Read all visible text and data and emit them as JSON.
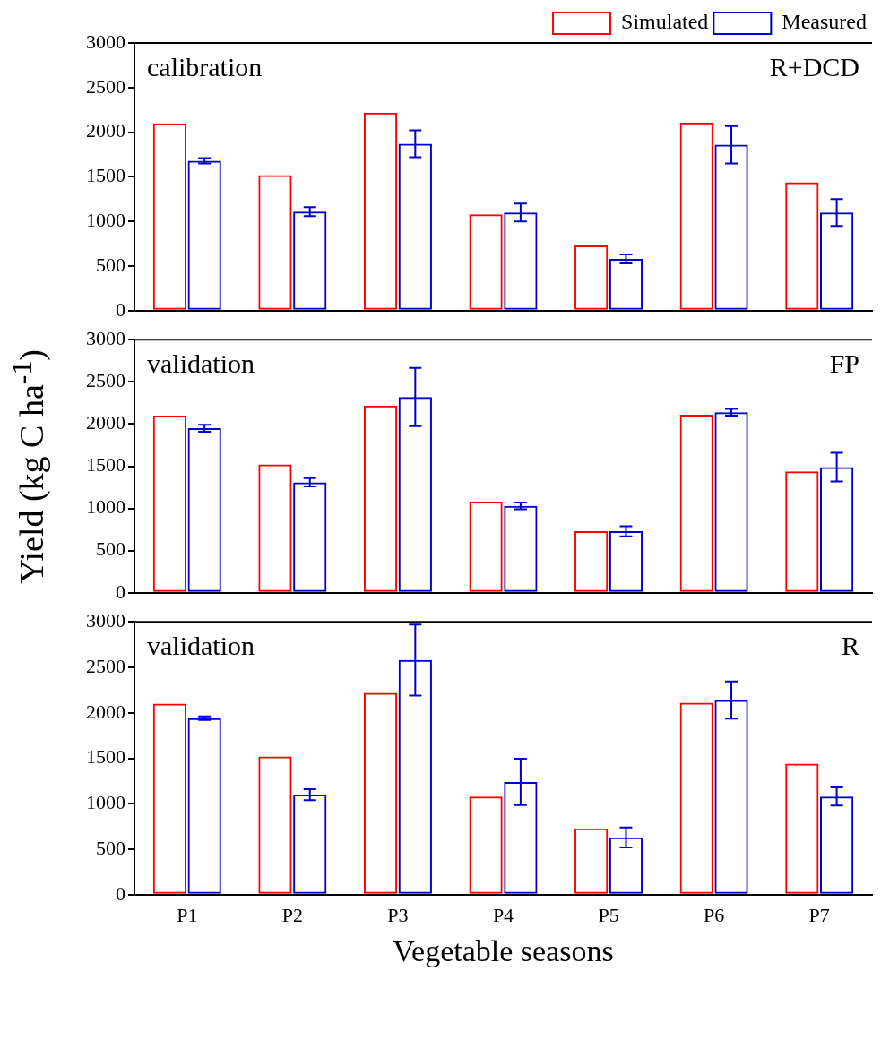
{
  "chart_data": [
    {
      "type": "bar",
      "categories": [
        null,
        null,
        null,
        null,
        null,
        null,
        null
      ],
      "annotations": [
        "calibration",
        "R+DCD"
      ],
      "legend": "top right",
      "grid": false,
      "tick_labels": "y",
      "ylim": [
        0,
        3000
      ],
      "yticks": [
        0,
        500,
        1000,
        1500,
        2000,
        2500,
        3000
      ],
      "series": [
        {
          "name": "Simulated",
          "color": "#ff0000",
          "values": [
            2100,
            1520,
            2220,
            1080,
            730,
            2110,
            1440
          ]
        },
        {
          "name": "Measured",
          "color": "#0000cc",
          "values": [
            1680,
            1110,
            1870,
            1100,
            580,
            1860,
            1100
          ],
          "errors": [
            30,
            50,
            150,
            100,
            50,
            210,
            150
          ]
        }
      ]
    },
    {
      "type": "bar",
      "categories": [
        null,
        null,
        null,
        null,
        null,
        null,
        null
      ],
      "annotations": [
        "validation",
        "FP"
      ],
      "ylabel": "Yield (kg C ha$^{-1}$)",
      "grid": false,
      "tick_labels": "y",
      "ylim": [
        0,
        3000
      ],
      "yticks": [
        0,
        500,
        1000,
        1500,
        2000,
        2500,
        3000
      ],
      "series": [
        {
          "color": "#ff0000",
          "values": [
            2100,
            1520,
            2220,
            1080,
            730,
            2110,
            1440
          ]
        },
        {
          "color": "#0000cc",
          "values": [
            1950,
            1310,
            2320,
            1030,
            730,
            2140,
            1490
          ],
          "errors": [
            40,
            50,
            345,
            40,
            60,
            40,
            170
          ]
        }
      ]
    },
    {
      "type": "bar",
      "categories": [
        "P1",
        "P2",
        "P3",
        "P4",
        "P5",
        "P6",
        "P7"
      ],
      "annotations": [
        "validation",
        "R"
      ],
      "xlabel": "Vegetable seasons",
      "grid": false,
      "ylim": [
        0,
        3000
      ],
      "yticks": [
        0,
        500,
        1000,
        1500,
        2000,
        2500,
        3000
      ],
      "series": [
        {
          "color": "#ff0000",
          "values": [
            2100,
            1520,
            2220,
            1080,
            730,
            2110,
            1440
          ]
        },
        {
          "color": "#0000cc",
          "values": [
            1940,
            1100,
            2580,
            1240,
            630,
            2140,
            1080
          ],
          "errors": [
            20,
            60,
            390,
            255,
            110,
            205,
            100
          ]
        }
      ]
    }
  ]
}
